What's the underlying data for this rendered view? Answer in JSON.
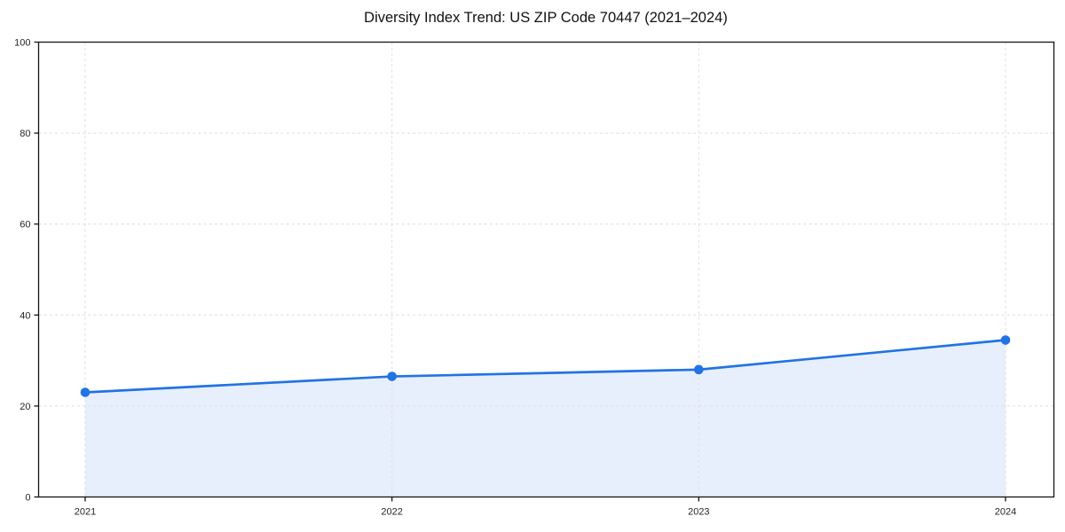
{
  "chart_data": {
    "type": "area",
    "title": "Diversity Index Trend: US ZIP Code 70447 (2021–2024)",
    "categories": [
      "2021",
      "2022",
      "2023",
      "2024"
    ],
    "series": [
      {
        "name": "Diversity Index",
        "values": [
          23,
          26.5,
          28,
          34.5
        ]
      }
    ],
    "xlabel": "",
    "ylabel": "",
    "ylim": [
      0,
      100
    ],
    "yticks": [
      0,
      20,
      40,
      60,
      80,
      100
    ],
    "grid": "dashed horizontal and vertical",
    "legend_position": "none",
    "marker": "circle",
    "colors": {
      "line": "#2273e3",
      "marker": "#2273e3",
      "fill": "#e7effd",
      "grid": "#dedede",
      "spine": "#141414",
      "tick_label": "#262626",
      "title": "#111111",
      "background": "#ffffff"
    }
  }
}
